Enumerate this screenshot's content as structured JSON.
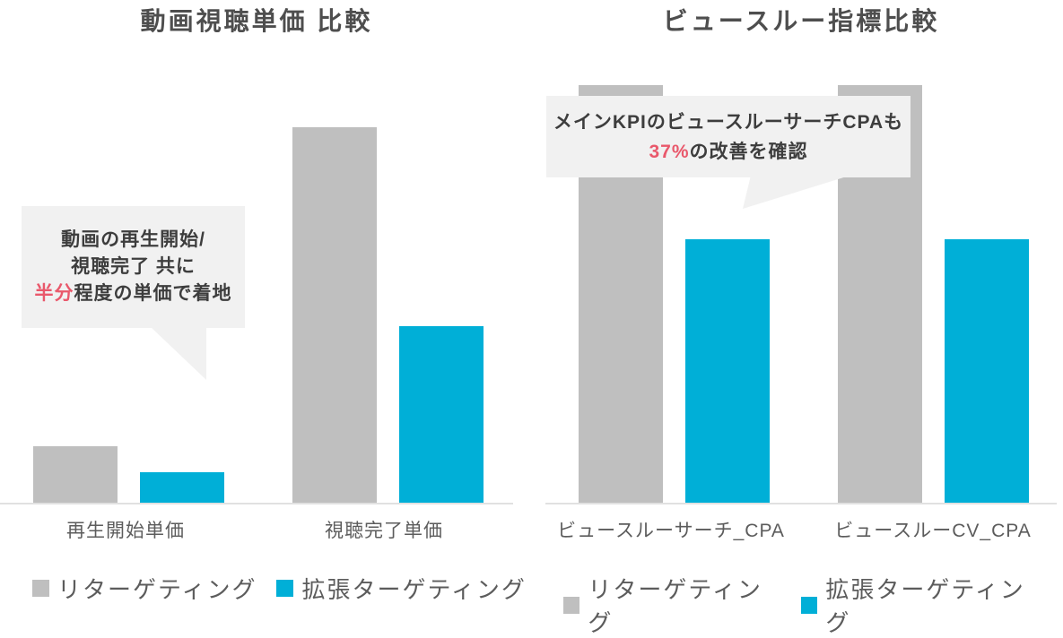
{
  "page": {
    "background": "#FFFFFF"
  },
  "colors": {
    "retargeting": "#BFBFBF",
    "expanded": "#00AFD7",
    "axis_line": "#E1E1E1",
    "callout_bg": "#F1F1F1",
    "text_dark": "#3D3D3D",
    "text_gray": "#5C5C5C",
    "accent_red": "#E9586B"
  },
  "chart_data": [
    {
      "type": "bar",
      "title": "動画視聴単価 比較",
      "categories": [
        "再生開始単価",
        "視聴完了単価"
      ],
      "series": [
        {
          "name": "リターゲティング",
          "color_key": "retargeting",
          "values": [
            15,
            100
          ]
        },
        {
          "name": "拡張ターゲティング",
          "color_key": "expanded",
          "values": [
            8,
            47
          ]
        }
      ],
      "xlabel": "",
      "ylabel": "",
      "ylim": [
        0,
        110
      ],
      "axis_numbers_shown": false,
      "grid": false,
      "legend_position": "bottom-left",
      "annotation": {
        "lines": [
          [
            {
              "text": "動画の再生開始/",
              "em": false
            }
          ],
          [
            {
              "text": "視聴完了 共に",
              "em": false
            }
          ],
          [
            {
              "text": "半分",
              "em": true
            },
            {
              "text": "程度の単価で着地",
              "em": false
            }
          ]
        ]
      }
    },
    {
      "type": "bar",
      "title": "ビュースルー指標比較",
      "categories": [
        "ビュースルーサーチ_CPA",
        "ビュースルーCV_CPA"
      ],
      "series": [
        {
          "name": "リターゲティング",
          "color_key": "retargeting",
          "values": [
            100,
            100
          ]
        },
        {
          "name": "拡張ターゲティング",
          "color_key": "expanded",
          "values": [
            63,
            63
          ]
        }
      ],
      "xlabel": "",
      "ylabel": "",
      "ylim": [
        0,
        110
      ],
      "axis_numbers_shown": false,
      "grid": false,
      "legend_position": "bottom-left",
      "annotation": {
        "lines": [
          [
            {
              "text": "メインKPIのビュースルーサーチCPAも",
              "em": false
            }
          ],
          [
            {
              "text": "37%",
              "em": true
            },
            {
              "text": "の改善を確認",
              "em": false
            }
          ]
        ]
      }
    }
  ]
}
